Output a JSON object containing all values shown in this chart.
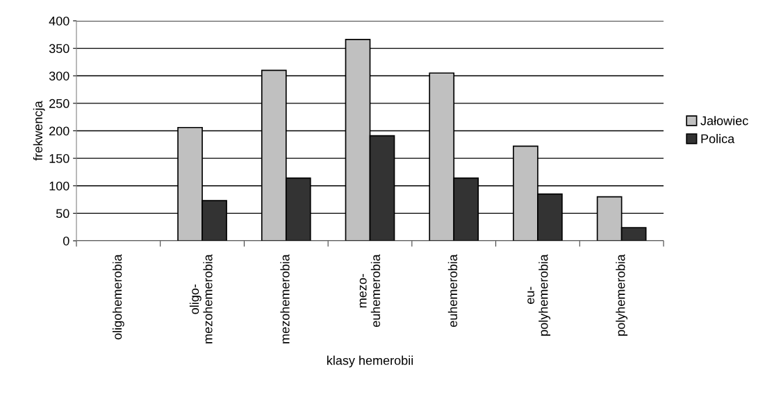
{
  "chart_data": {
    "type": "bar",
    "xlabel": "klasy hemerobii",
    "ylabel": "frekwencja",
    "categories": [
      "oligohemerobia",
      "oligo-\nmezohemerobia",
      "mezohemerobia",
      "mezo-\neuhemerobia",
      "euhemerobia",
      "eu-\npolyhemerobia",
      "polyhemerobia"
    ],
    "series": [
      {
        "name": "Jałowiec",
        "color": "#c0c0c0",
        "values": [
          null,
          206,
          310,
          366,
          305,
          172,
          80
        ]
      },
      {
        "name": "Polica",
        "color": "#333333",
        "values": [
          null,
          73,
          114,
          191,
          114,
          85,
          24
        ]
      }
    ],
    "ylim": [
      0,
      400
    ],
    "yticks": [
      0,
      50,
      100,
      150,
      200,
      250,
      300,
      350,
      400
    ],
    "grid": "y",
    "legend": "right"
  }
}
